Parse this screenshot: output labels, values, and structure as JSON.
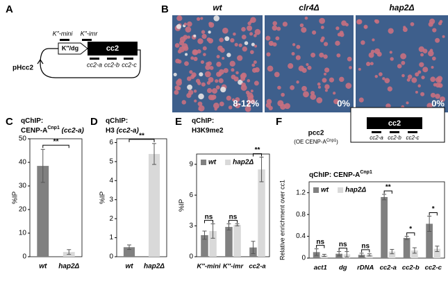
{
  "panel_labels": [
    "A",
    "B",
    "C",
    "D",
    "E",
    "F"
  ],
  "plasmid": {
    "name": "pHcc2",
    "insert": "cc2",
    "repeat": "K″/dg",
    "primers_top": [
      "K″-mini",
      "K″-imr"
    ],
    "primers_bottom": [
      "cc2-a",
      "cc2-b",
      "cc2-c"
    ]
  },
  "photos": [
    {
      "label": "wt",
      "percent": "8-12%"
    },
    {
      "label": "clr4Δ",
      "percent": "0%"
    },
    {
      "label": "hap2Δ",
      "percent": "0%"
    }
  ],
  "construct_F": {
    "name": "pcc2",
    "note_start": "(OE CENP-A",
    "note_sup": "Cnp1",
    "note_end": ")",
    "insert": "cc2",
    "primers": [
      "cc2-a",
      "cc2-b",
      "cc2-c"
    ]
  },
  "chart_data": [
    {
      "type": "bar",
      "title": "qChIP:",
      "subtitle": "CENP-A",
      "subtitle_sup": "Cnp1",
      "subtitle_end": " (cc2-a)",
      "ylabel": "%IP",
      "categories": [
        "wt",
        "hap2Δ"
      ],
      "values": [
        38.5,
        2
      ],
      "errors": [
        7,
        1
      ],
      "colors": [
        "#808080",
        "#d9d9d9"
      ],
      "ylim": [
        0,
        50
      ],
      "yticks": [
        0,
        10,
        20,
        30,
        40,
        50
      ],
      "annotations": [
        "**"
      ]
    },
    {
      "type": "bar",
      "title": "qChIP:",
      "subtitle": "H3",
      "subtitle_end": " (cc2-a)",
      "ylabel": "%IP",
      "categories": [
        "wt",
        "hap2Δ"
      ],
      "values": [
        0.5,
        5.4
      ],
      "errors": [
        0.12,
        0.55
      ],
      "colors": [
        "#808080",
        "#d9d9d9"
      ],
      "ylim": [
        0,
        6.2
      ],
      "yticks": [
        0,
        1,
        2,
        3,
        4,
        5,
        6
      ],
      "annotations": [
        "**"
      ]
    },
    {
      "type": "grouped-bar",
      "title": "qChIP:",
      "subtitle": "H3K9me2",
      "ylabel": "%IP",
      "categories": [
        "K″-mini",
        "K″-imr",
        "cc2-a"
      ],
      "series": [
        {
          "name": "wt",
          "color": "#808080",
          "values": [
            2.1,
            2.9,
            0.9
          ],
          "errors": [
            0.4,
            0.3,
            0.6
          ]
        },
        {
          "name": "hap2Δ",
          "color": "#d9d9d9",
          "values": [
            2.5,
            3.1,
            8.5
          ],
          "errors": [
            0.7,
            0.1,
            1.2
          ]
        }
      ],
      "ylim": [
        0,
        10
      ],
      "yticks": [
        0,
        3,
        6,
        9
      ],
      "annotations": [
        "ns",
        "ns",
        "**"
      ]
    },
    {
      "type": "grouped-bar",
      "title": "qChIP: CENP-A",
      "title_sup": "Cnp1",
      "ylabel": "Relative enrichment over cc1",
      "categories": [
        "act1",
        "dg",
        "rDNA",
        "cc2-a",
        "cc2-b",
        "cc2-c"
      ],
      "series": [
        {
          "name": "wt",
          "color": "#808080",
          "values": [
            0.11,
            0.08,
            0.06,
            1.12,
            0.37,
            0.63
          ],
          "errors": [
            0.06,
            0.04,
            0.03,
            0.05,
            0.03,
            0.14
          ]
        },
        {
          "name": "hap2Δ",
          "color": "#d9d9d9",
          "values": [
            0.05,
            0.07,
            0.06,
            0.12,
            0.14,
            0.17
          ],
          "errors": [
            0.02,
            0.05,
            0.02,
            0.04,
            0.05,
            0.05
          ]
        }
      ],
      "ylim": [
        0,
        1.4
      ],
      "yticks": [
        0,
        0.4,
        0.8,
        1.2
      ],
      "annotations": [
        "ns",
        "ns",
        "ns",
        "**",
        "*",
        "*"
      ]
    }
  ]
}
